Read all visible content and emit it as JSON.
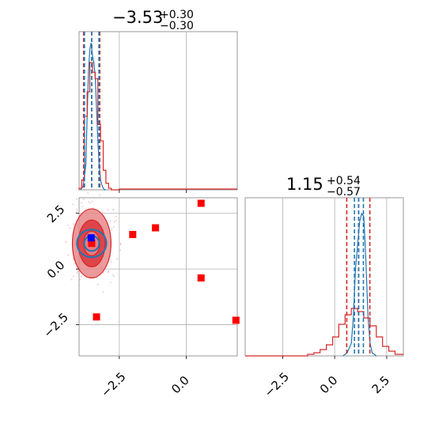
{
  "colors": {
    "red": "#d62728",
    "blue": "#1f77b4",
    "square_red": "#ff0000",
    "square_blue": "#0000ff",
    "contour_light": "#e8878a",
    "contour_dark": "#d9363c",
    "grid": "#b0b0b0"
  },
  "chart_data": [
    {
      "panel": "top-left",
      "type": "histogram",
      "parameter_index": 0,
      "title": {
        "value": "−3.53",
        "plus": "+0.30",
        "minus": "−0.30"
      },
      "xlim": [
        -4.0,
        1.9
      ],
      "grid": true,
      "x_tick_values": [
        -2.5,
        0.0
      ],
      "series": [
        {
          "color": "blue",
          "style": "line",
          "x": [
            -3.95,
            -3.85,
            -3.75,
            -3.7,
            -3.65,
            -3.6,
            -3.55,
            -3.5,
            -3.45,
            -3.4,
            -3.35,
            -3.3,
            -3.25,
            -3.2,
            -3.15,
            -3.1,
            -3.05,
            -3.0
          ],
          "y": [
            0.0,
            0.02,
            0.15,
            0.45,
            0.72,
            0.86,
            0.9,
            0.82,
            0.78,
            0.7,
            0.5,
            0.3,
            0.15,
            0.06,
            0.03,
            0.01,
            0.0,
            0.0
          ]
        },
        {
          "color": "red",
          "style": "step",
          "x": [
            -4.0,
            -3.9,
            -3.8,
            -3.7,
            -3.6,
            -3.5,
            -3.4,
            -3.3,
            -3.2,
            -3.1,
            -3.0,
            -2.9,
            -2.8,
            -2.5,
            -2.0,
            -1.0,
            1.9
          ],
          "y": [
            0.01,
            0.06,
            0.45,
            0.6,
            0.78,
            0.72,
            0.68,
            0.4,
            0.3,
            0.12,
            0.04,
            0.01,
            0.0,
            0.005,
            0.005,
            0.005,
            0.0
          ]
        }
      ],
      "vlines": [
        {
          "x": -3.83,
          "color": "red"
        },
        {
          "x": -3.53,
          "color": "red"
        },
        {
          "x": -3.23,
          "color": "red"
        },
        {
          "x": -3.8,
          "color": "blue"
        },
        {
          "x": -3.53,
          "color": "blue"
        },
        {
          "x": -3.26,
          "color": "blue"
        }
      ]
    },
    {
      "panel": "bottom-left",
      "type": "scatter",
      "xlim": [
        -4.0,
        1.9
      ],
      "ylim": [
        -3.9,
        3.2
      ],
      "grid": true,
      "x_tick_values": [
        -2.5,
        0.0
      ],
      "y_tick_values": [
        -2.5,
        0.0,
        2.5
      ],
      "x_tick_labels": [
        "−2.5",
        "0.0"
      ],
      "y_tick_labels": [
        "−2.5",
        "0.0",
        "2.5"
      ],
      "contours": {
        "center": [
          -3.53,
          1.15
        ],
        "levels": [
          {
            "rx": 0.72,
            "ry": 1.55,
            "color": "contour_light"
          },
          {
            "rx": 0.5,
            "ry": 1.05,
            "color": "contour_dark"
          },
          {
            "rx": 0.3,
            "ry": 0.55,
            "color": "contour_light"
          }
        ],
        "blue_levels": [
          {
            "rx": 0.55,
            "ry": 0.62
          },
          {
            "rx": 0.28,
            "ry": 0.34
          }
        ]
      },
      "red_squares": [
        {
          "x": -3.53,
          "y": 1.15
        },
        {
          "x": -3.35,
          "y": -2.15
        },
        {
          "x": -2.0,
          "y": 1.55
        },
        {
          "x": -1.15,
          "y": 1.85
        },
        {
          "x": 0.55,
          "y": 2.95
        },
        {
          "x": 0.55,
          "y": -0.4
        },
        {
          "x": 1.85,
          "y": -2.3
        }
      ],
      "blue_square": {
        "x": -3.55,
        "y": 1.4
      }
    },
    {
      "panel": "bottom-right",
      "type": "histogram",
      "parameter_index": 1,
      "title": {
        "value": "1.15",
        "plus": "+0.54",
        "minus": "−0.57"
      },
      "xlim": [
        -4.3,
        3.3
      ],
      "grid": true,
      "x_tick_values": [
        -2.5,
        0.0,
        2.5
      ],
      "x_tick_labels": [
        "−2.5",
        "0.0",
        "2.5"
      ],
      "series": [
        {
          "color": "blue",
          "style": "line",
          "x": [
            0.4,
            0.6,
            0.8,
            0.9,
            1.0,
            1.1,
            1.2,
            1.3,
            1.4,
            1.5,
            1.6,
            1.7,
            1.8,
            2.0
          ],
          "y": [
            0.0,
            0.02,
            0.08,
            0.25,
            0.55,
            0.7,
            0.85,
            0.9,
            0.88,
            0.6,
            0.25,
            0.08,
            0.02,
            0.0
          ]
        },
        {
          "color": "red",
          "style": "step",
          "x": [
            -4.3,
            -1.3,
            -1.0,
            -0.7,
            -0.4,
            -0.1,
            0.2,
            0.5,
            0.8,
            1.1,
            1.4,
            1.7,
            2.0,
            2.3,
            2.6,
            2.9,
            3.3
          ],
          "y": [
            0.0,
            0.01,
            0.02,
            0.04,
            0.07,
            0.12,
            0.2,
            0.26,
            0.3,
            0.28,
            0.24,
            0.19,
            0.12,
            0.06,
            0.03,
            0.01,
            0.0
          ]
        }
      ],
      "vlines": [
        {
          "x": 0.58,
          "color": "red"
        },
        {
          "x": 1.15,
          "color": "red"
        },
        {
          "x": 1.69,
          "color": "red"
        },
        {
          "x": 0.95,
          "color": "blue"
        },
        {
          "x": 1.15,
          "color": "blue"
        },
        {
          "x": 1.38,
          "color": "blue"
        }
      ]
    }
  ]
}
